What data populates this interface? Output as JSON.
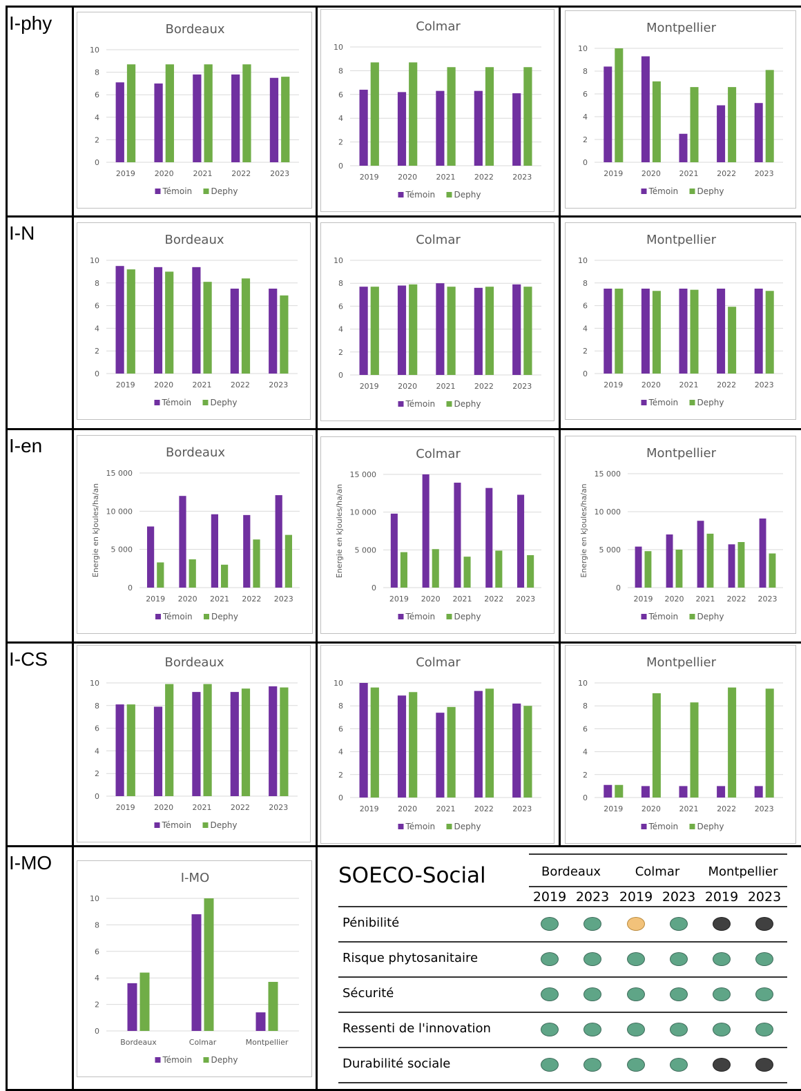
{
  "colors": {
    "temoin": "#7030a0",
    "dephy": "#70ad47",
    "dot_green": "#5fa587",
    "dot_yellow": "#f2c27a",
    "dot_dark": "#404040"
  },
  "rows": [
    {
      "label": "I-phy"
    },
    {
      "label": "I-N"
    },
    {
      "label": "I-en"
    },
    {
      "label": "I-CS"
    },
    {
      "label": "I-MO"
    }
  ],
  "chart_data": [
    {
      "id": "iphy-bordeaux",
      "type": "bar",
      "title": "Bordeaux",
      "categories": [
        "2019",
        "2020",
        "2021",
        "2022",
        "2023"
      ],
      "ylim": [
        0,
        10
      ],
      "yticks": [
        "0",
        "2",
        "4",
        "6",
        "8",
        "10"
      ],
      "ylabel": "",
      "series": [
        {
          "name": "Témoin",
          "values": [
            7.1,
            7.0,
            7.8,
            7.8,
            7.5
          ]
        },
        {
          "name": "Dephy",
          "values": [
            8.7,
            8.7,
            8.7,
            8.7,
            7.6
          ]
        }
      ]
    },
    {
      "id": "iphy-colmar",
      "type": "bar",
      "title": "Colmar",
      "categories": [
        "2019",
        "2020",
        "2021",
        "2022",
        "2023"
      ],
      "ylim": [
        0,
        10
      ],
      "yticks": [
        "0",
        "2",
        "4",
        "6",
        "8",
        "10"
      ],
      "ylabel": "",
      "series": [
        {
          "name": "Témoin",
          "values": [
            6.4,
            6.2,
            6.3,
            6.3,
            6.1
          ]
        },
        {
          "name": "Dephy",
          "values": [
            8.7,
            8.7,
            8.3,
            8.3,
            8.3
          ]
        }
      ]
    },
    {
      "id": "iphy-montpellier",
      "type": "bar",
      "title": "Montpellier",
      "categories": [
        "2019",
        "2020",
        "2021",
        "2022",
        "2023"
      ],
      "ylim": [
        0,
        10
      ],
      "yticks": [
        "0",
        "2",
        "4",
        "6",
        "8",
        "10"
      ],
      "ylabel": "",
      "series": [
        {
          "name": "Témoin",
          "values": [
            8.4,
            9.3,
            2.5,
            5.0,
            5.2
          ]
        },
        {
          "name": "Dephy",
          "values": [
            10.0,
            7.1,
            6.6,
            6.6,
            8.1
          ]
        }
      ]
    },
    {
      "id": "in-bordeaux",
      "type": "bar",
      "title": "Bordeaux",
      "categories": [
        "2019",
        "2020",
        "2021",
        "2022",
        "2023"
      ],
      "ylim": [
        0,
        10
      ],
      "yticks": [
        "0",
        "2",
        "4",
        "6",
        "8",
        "10"
      ],
      "ylabel": "",
      "series": [
        {
          "name": "Témoin",
          "values": [
            9.5,
            9.4,
            9.4,
            7.5,
            7.5
          ]
        },
        {
          "name": "Dephy",
          "values": [
            9.2,
            9.0,
            8.1,
            8.4,
            6.9
          ]
        }
      ]
    },
    {
      "id": "in-colmar",
      "type": "bar",
      "title": "Colmar",
      "categories": [
        "2019",
        "2020",
        "2021",
        "2022",
        "2023"
      ],
      "ylim": [
        0,
        10
      ],
      "yticks": [
        "0",
        "2",
        "4",
        "6",
        "8",
        "10"
      ],
      "ylabel": "",
      "series": [
        {
          "name": "Témoin",
          "values": [
            7.7,
            7.8,
            8.0,
            7.6,
            7.9
          ]
        },
        {
          "name": "Dephy",
          "values": [
            7.7,
            7.9,
            7.7,
            7.7,
            7.7
          ]
        }
      ]
    },
    {
      "id": "in-montpellier",
      "type": "bar",
      "title": "Montpellier",
      "categories": [
        "2019",
        "2020",
        "2021",
        "2022",
        "2023"
      ],
      "ylim": [
        0,
        10
      ],
      "yticks": [
        "0",
        "2",
        "4",
        "6",
        "8",
        "10"
      ],
      "ylabel": "",
      "series": [
        {
          "name": "Témoin",
          "values": [
            7.5,
            7.5,
            7.5,
            7.5,
            7.5
          ]
        },
        {
          "name": "Dephy",
          "values": [
            7.5,
            7.3,
            7.4,
            5.9,
            7.3
          ]
        }
      ]
    },
    {
      "id": "ien-bordeaux",
      "type": "bar",
      "title": "Bordeaux",
      "categories": [
        "2019",
        "2020",
        "2021",
        "2022",
        "2023"
      ],
      "ylim": [
        0,
        15000
      ],
      "yticks": [
        "0",
        "5 000",
        "10 000",
        "15 000"
      ],
      "ylabel": "Energie en kJoules/ha/an",
      "series": [
        {
          "name": "Témoin",
          "values": [
            8000,
            12000,
            9600,
            9500,
            12100
          ]
        },
        {
          "name": "Dephy",
          "values": [
            3300,
            3700,
            3000,
            6300,
            6900
          ]
        }
      ]
    },
    {
      "id": "ien-colmar",
      "type": "bar",
      "title": "Colmar",
      "categories": [
        "2019",
        "2020",
        "2021",
        "2022",
        "2023"
      ],
      "ylim": [
        0,
        15000
      ],
      "yticks": [
        "0",
        "5 000",
        "10 000",
        "15 000"
      ],
      "ylabel": "Energie en kJoules/ha/an",
      "series": [
        {
          "name": "Témoin",
          "values": [
            9800,
            15000,
            13900,
            13200,
            12300
          ]
        },
        {
          "name": "Dephy",
          "values": [
            4700,
            5100,
            4100,
            4900,
            4300
          ]
        }
      ]
    },
    {
      "id": "ien-montpellier",
      "type": "bar",
      "title": "Montpellier",
      "categories": [
        "2019",
        "2020",
        "2021",
        "2022",
        "2023"
      ],
      "ylim": [
        0,
        15000
      ],
      "yticks": [
        "0",
        "5 000",
        "10 000",
        "15 000"
      ],
      "ylabel": "Energie en kJoules/ha/an",
      "series": [
        {
          "name": "Témoin",
          "values": [
            5400,
            7000,
            8800,
            5700,
            9100
          ]
        },
        {
          "name": "Dephy",
          "values": [
            4800,
            5000,
            7100,
            6000,
            4500
          ]
        }
      ]
    },
    {
      "id": "ics-bordeaux",
      "type": "bar",
      "title": "Bordeaux",
      "categories": [
        "2019",
        "2020",
        "2021",
        "2022",
        "2023"
      ],
      "ylim": [
        0,
        10
      ],
      "yticks": [
        "0",
        "2",
        "4",
        "6",
        "8",
        "10"
      ],
      "ylabel": "",
      "series": [
        {
          "name": "Témoin",
          "values": [
            8.1,
            7.9,
            9.2,
            9.2,
            9.7
          ]
        },
        {
          "name": "Dephy",
          "values": [
            8.1,
            9.9,
            9.9,
            9.5,
            9.6
          ]
        }
      ]
    },
    {
      "id": "ics-colmar",
      "type": "bar",
      "title": "Colmar",
      "categories": [
        "2019",
        "2020",
        "2021",
        "2022",
        "2023"
      ],
      "ylim": [
        0,
        10
      ],
      "yticks": [
        "0",
        "2",
        "4",
        "6",
        "8",
        "10"
      ],
      "ylabel": "",
      "series": [
        {
          "name": "Témoin",
          "values": [
            10.0,
            8.9,
            7.4,
            9.3,
            8.2
          ]
        },
        {
          "name": "Dephy",
          "values": [
            9.6,
            9.2,
            7.9,
            9.5,
            8.0
          ]
        }
      ]
    },
    {
      "id": "ics-montpellier",
      "type": "bar",
      "title": "Montpellier",
      "categories": [
        "2019",
        "2020",
        "2021",
        "2022",
        "2023"
      ],
      "ylim": [
        0,
        10
      ],
      "yticks": [
        "0",
        "2",
        "4",
        "6",
        "8",
        "10"
      ],
      "ylabel": "",
      "series": [
        {
          "name": "Témoin",
          "values": [
            1.1,
            1.0,
            1.0,
            1.0,
            1.0
          ]
        },
        {
          "name": "Dephy",
          "values": [
            1.1,
            9.1,
            8.3,
            9.6,
            9.5
          ]
        }
      ]
    },
    {
      "id": "imo",
      "type": "bar",
      "title": "I-MO",
      "categories": [
        "Bordeaux",
        "Colmar",
        "Montpellier"
      ],
      "ylim": [
        0,
        10
      ],
      "yticks": [
        "0",
        "2",
        "4",
        "6",
        "8",
        "10"
      ],
      "ylabel": "",
      "series": [
        {
          "name": "Témoin",
          "values": [
            3.6,
            8.8,
            1.4
          ]
        },
        {
          "name": "Dephy",
          "values": [
            4.4,
            10.0,
            3.7
          ]
        }
      ]
    }
  ],
  "soeco": {
    "title": "SOECO-Social",
    "cities": [
      "Bordeaux",
      "Colmar",
      "Montpellier"
    ],
    "years": [
      "2019",
      "2023",
      "2019",
      "2023",
      "2019",
      "2023"
    ],
    "rows": [
      {
        "label": "Pénibilité",
        "values": [
          "green",
          "green",
          "yellow",
          "green",
          "dark",
          "dark"
        ]
      },
      {
        "label": "Risque phytosanitaire",
        "values": [
          "green",
          "green",
          "green",
          "green",
          "green",
          "green"
        ]
      },
      {
        "label": "Sécurité",
        "values": [
          "green",
          "green",
          "green",
          "green",
          "green",
          "green"
        ]
      },
      {
        "label": "Ressenti de l'innovation",
        "values": [
          "green",
          "green",
          "green",
          "green",
          "green",
          "green"
        ]
      },
      {
        "label": "Durabilité sociale",
        "values": [
          "green",
          "green",
          "green",
          "green",
          "dark",
          "dark"
        ]
      }
    ]
  }
}
